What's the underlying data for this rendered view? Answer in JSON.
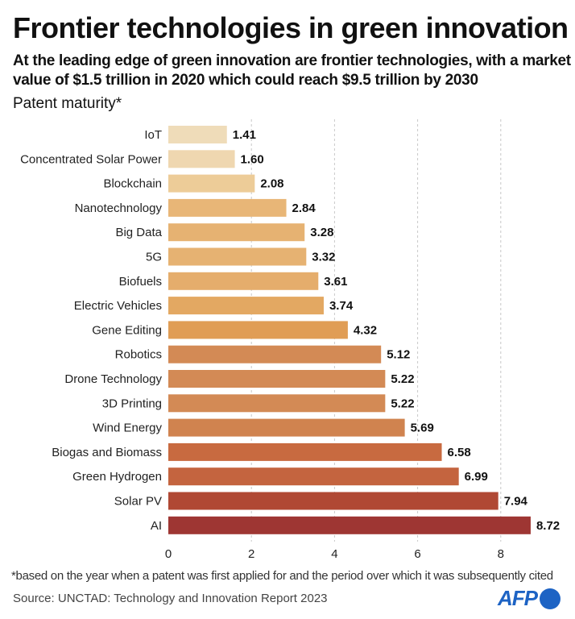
{
  "title": "Frontier technologies in green innovation",
  "subtitle": "At the leading edge of green innovation are frontier technologies, with a market value of $1.5 trillion in 2020 which could reach $9.5 trillion by 2030",
  "footnote": "*based on the year when a patent was first applied for and the period over which it was subsequently cited",
  "source": "Source: UNCTAD: Technology and Innovation Report 2023",
  "logo": "AFP",
  "chart_data": {
    "type": "bar",
    "orientation": "horizontal",
    "ylabel": "Patent maturity*",
    "categories": [
      "IoT",
      "Concentrated Solar Power",
      "Blockchain",
      "Nanotechnology",
      "Big Data",
      "5G",
      "Biofuels",
      "Electric Vehicles",
      "Gene Editing",
      "Robotics",
      "Drone Technology",
      "3D Printing",
      "Wind Energy",
      "Biogas and Biomass",
      "Green Hydrogen",
      "Solar PV",
      "AI"
    ],
    "values": [
      1.41,
      1.6,
      2.08,
      2.84,
      3.28,
      3.32,
      3.61,
      3.74,
      4.32,
      5.12,
      5.22,
      5.22,
      5.69,
      6.58,
      6.99,
      7.94,
      8.72
    ],
    "value_labels": [
      "1.41",
      "1.60",
      "2.08",
      "2.84",
      "3.28",
      "3.32",
      "3.61",
      "3.74",
      "4.32",
      "5.12",
      "5.22",
      "5.22",
      "5.69",
      "6.58",
      "6.99",
      "7.94",
      "8.72"
    ],
    "colors": [
      "#efdcb9",
      "#efd7b0",
      "#edcc98",
      "#e8b677",
      "#e6b272",
      "#e6b272",
      "#e5ad6c",
      "#e3a862",
      "#e09d55",
      "#d38a55",
      "#d38a55",
      "#d38a55",
      "#d0834f",
      "#c86a40",
      "#c4643f",
      "#b04834",
      "#9e3633"
    ],
    "xticks": [
      "0",
      "2",
      "4",
      "6",
      "8"
    ],
    "xlim": [
      0,
      8.9
    ],
    "grid": "vertical dashed"
  }
}
